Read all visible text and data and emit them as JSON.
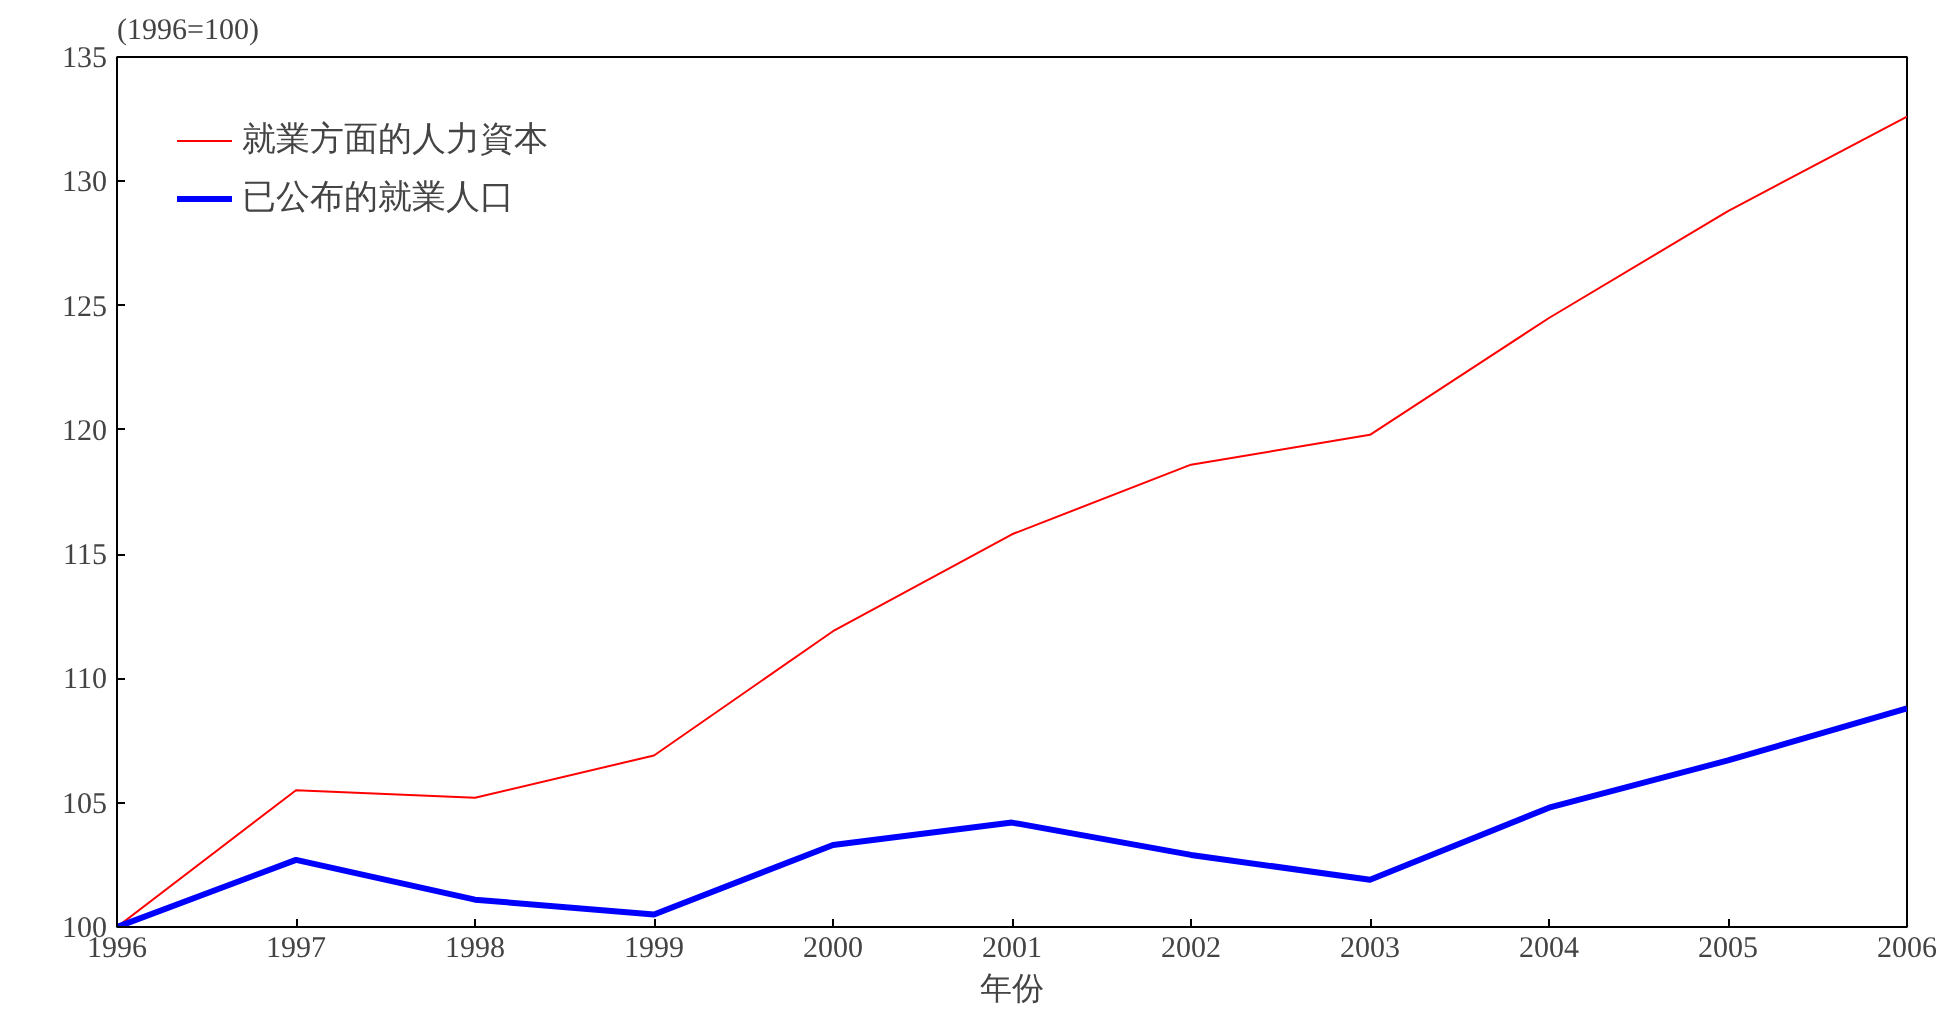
{
  "chart_data": {
    "type": "line",
    "ylabel": "(1996=100)",
    "xlabel": "年份",
    "x": [
      1996,
      1997,
      1998,
      1999,
      2000,
      2001,
      2002,
      2003,
      2004,
      2005,
      2006
    ],
    "series": [
      {
        "name": "就業方面的人力資本",
        "color": "#ff0000",
        "values": [
          100,
          105.5,
          105.2,
          106.9,
          111.9,
          115.8,
          118.6,
          119.8,
          124.5,
          128.8,
          132.6
        ]
      },
      {
        "name": "已公布的就業人口",
        "color": "#0000ff",
        "values": [
          100,
          102.7,
          101.1,
          100.5,
          103.3,
          104.2,
          102.9,
          101.9,
          104.8,
          106.7,
          108.8
        ]
      }
    ],
    "xlim": [
      1996,
      2006
    ],
    "xticks": [
      1996,
      1997,
      1998,
      1999,
      2000,
      2001,
      2002,
      2003,
      2004,
      2005,
      2006
    ],
    "ylim": [
      100,
      135
    ],
    "yticks": [
      100,
      105,
      110,
      115,
      120,
      125,
      130,
      135
    ],
    "grid": false,
    "legend": "top left",
    "marker": "none",
    "line_style": "solid"
  }
}
